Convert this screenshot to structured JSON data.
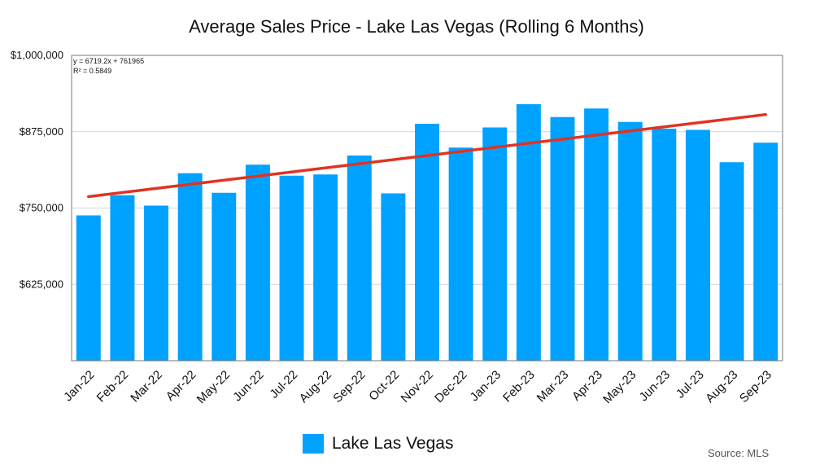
{
  "chart_data": {
    "type": "bar",
    "title": "Average Sales Price - Lake Las Vegas (Rolling 6 Months)",
    "categories": [
      "Jan-22",
      "Feb-22",
      "Mar-22",
      "Apr-22",
      "May-22",
      "Jun-22",
      "Jul-22",
      "Aug-22",
      "Sep-22",
      "Oct-22",
      "Nov-22",
      "Dec-22",
      "Jan-23",
      "Feb-23",
      "Mar-23",
      "Apr-23",
      "May-23",
      "Jun-23",
      "Jul-23",
      "Aug-23",
      "Sep-23"
    ],
    "series": [
      {
        "name": "Lake Las Vegas",
        "color": "#00A2FF",
        "values": [
          738000,
          771000,
          754000,
          807000,
          775000,
          821000,
          803000,
          805000,
          836000,
          774000,
          888000,
          849000,
          882000,
          920000,
          899000,
          913000,
          891000,
          880000,
          878000,
          825000,
          857000
        ]
      }
    ],
    "trendline": {
      "type": "linear",
      "slope": 6719.2,
      "intercept": 761965,
      "color": "#E03322",
      "equation_label": "y = 6719.2x + 761965",
      "r_squared_label": "R² = 0.5849"
    },
    "y_axis": {
      "min": 500000,
      "max": 1000000,
      "ticks": [
        625000,
        750000,
        875000,
        1000000
      ],
      "tick_labels": [
        "$625,000",
        "$750,000",
        "$875,000",
        "$1,000,000"
      ]
    },
    "xlabel": "",
    "ylabel": "",
    "grid": true,
    "legend_position": "bottom",
    "source": "Source: MLS"
  }
}
